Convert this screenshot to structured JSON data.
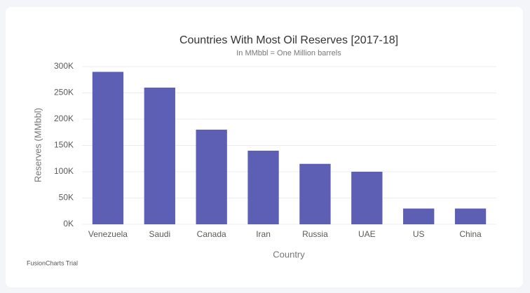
{
  "chart_data": {
    "type": "bar",
    "title": "Countries With Most Oil Reserves [2017-18]",
    "subtitle": "In MMbbl = One Million barrels",
    "x_label": "Country",
    "y_label": "Reserves (MMbbl)",
    "credit": "FusionCharts Trial",
    "categories": [
      "Venezuela",
      "Saudi",
      "Canada",
      "Iran",
      "Russia",
      "UAE",
      "US",
      "China"
    ],
    "values": [
      290000,
      260000,
      180000,
      140000,
      115000,
      100000,
      30000,
      30000
    ],
    "color": "#5c5fb4",
    "ylim": [
      0,
      300000
    ],
    "yticks": [
      {
        "value": 0,
        "label": "0K"
      },
      {
        "value": 50000,
        "label": "50K"
      },
      {
        "value": 100000,
        "label": "100K"
      },
      {
        "value": 150000,
        "label": "150K"
      },
      {
        "value": 200000,
        "label": "200K"
      },
      {
        "value": 250000,
        "label": "250K"
      },
      {
        "value": 300000,
        "label": "300K"
      }
    ],
    "grid": true
  }
}
